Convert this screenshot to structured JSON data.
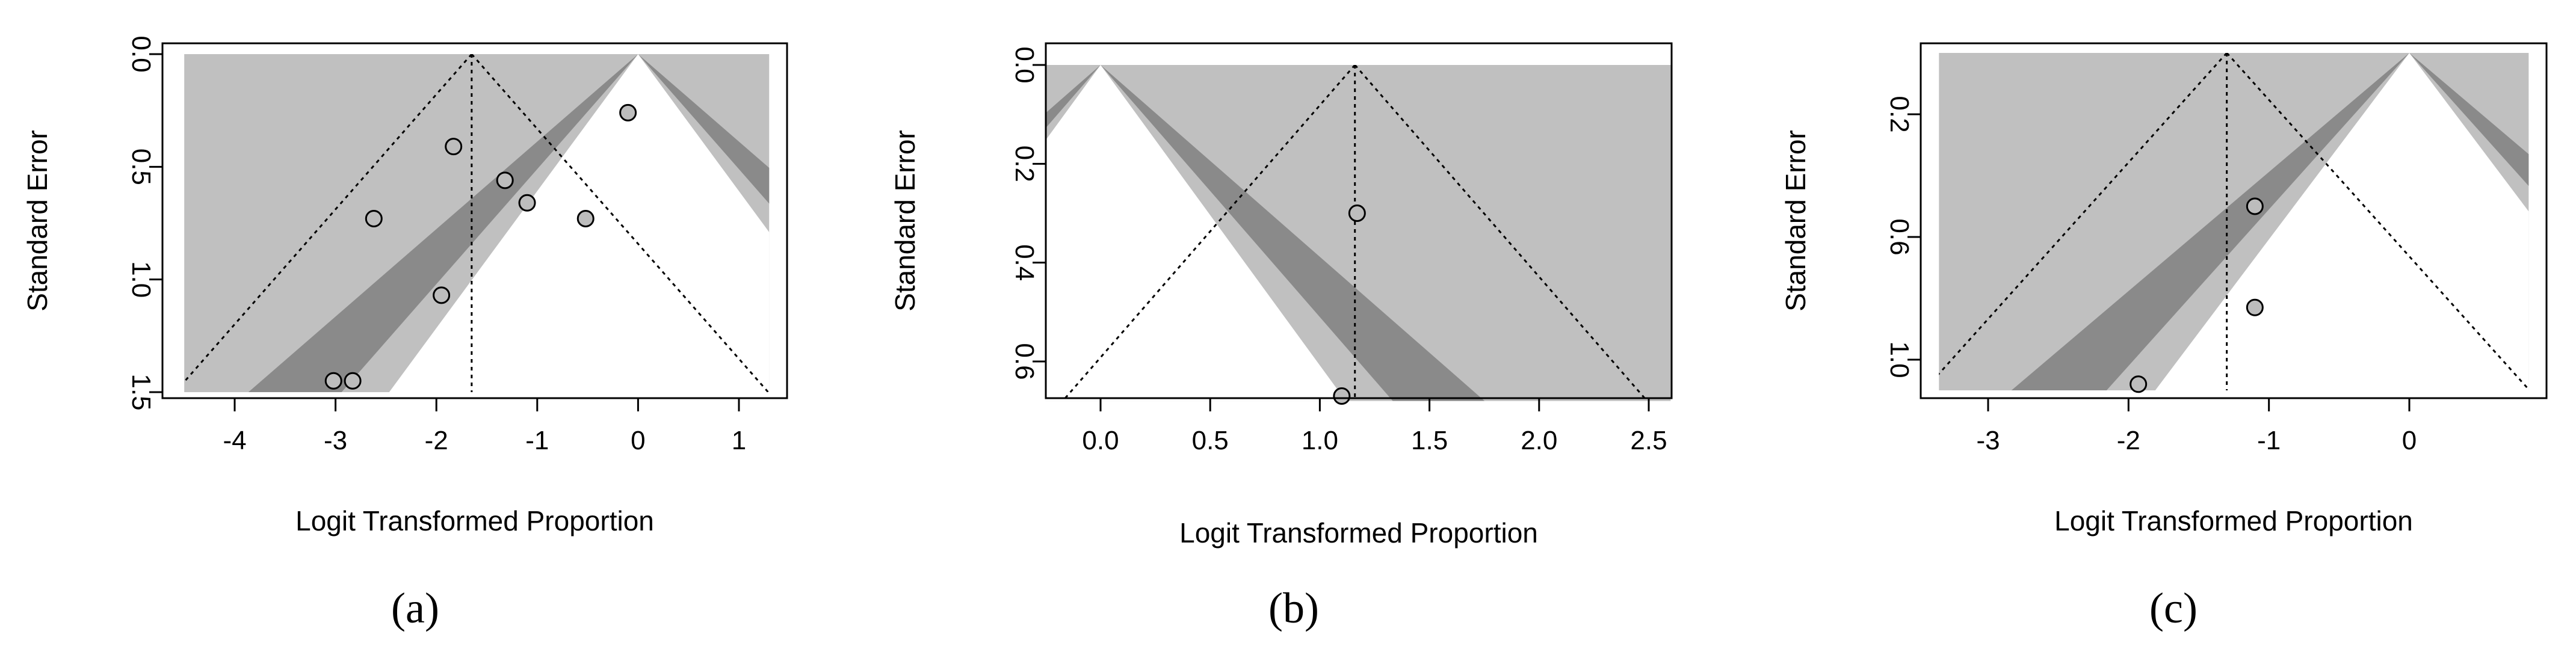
{
  "figure": {
    "captions": [
      "(a)",
      "(b)",
      "(c)"
    ]
  },
  "colors": {
    "light_region": "#c0c0c0",
    "dark_region": "#8a8a8a",
    "point_fill": "#bdbdbd",
    "line": "#000000",
    "background": "#ffffff"
  },
  "chart_data": [
    {
      "type": "scatter",
      "subtype": "contour-enhanced funnel plot",
      "caption": "(a)",
      "xlabel": "Logit Transformed Proportion",
      "ylabel": "Standard Error",
      "xlim": [
        -4.5,
        1.3
      ],
      "ylim_reversed": [
        1.5,
        0
      ],
      "x_ticks": [
        -4,
        -3,
        -2,
        -1,
        0,
        1
      ],
      "x_tick_labels": [
        "-4",
        "-3",
        "-2",
        "-1",
        "0",
        "1"
      ],
      "y_ticks": [
        0.0,
        0.5,
        1.0,
        1.5
      ],
      "y_tick_labels": [
        "0.0",
        "0.5",
        "1.0",
        "1.5"
      ],
      "y_axis_reversed": true,
      "pooled_estimate": -1.65,
      "contour_center": 0,
      "points": [
        {
          "x": -0.1,
          "y": 0.26
        },
        {
          "x": -1.83,
          "y": 0.41
        },
        {
          "x": -1.32,
          "y": 0.56
        },
        {
          "x": -1.1,
          "y": 0.66
        },
        {
          "x": -2.62,
          "y": 0.73
        },
        {
          "x": -0.52,
          "y": 0.73
        },
        {
          "x": -1.95,
          "y": 1.07
        },
        {
          "x": -3.02,
          "y": 1.45
        },
        {
          "x": -2.83,
          "y": 1.45
        }
      ]
    },
    {
      "type": "scatter",
      "subtype": "contour-enhanced funnel plot",
      "caption": "(b)",
      "xlabel": "Logit Transformed Proportion",
      "ylabel": "Standard Error",
      "xlim": [
        -0.25,
        2.6
      ],
      "ylim_reversed": [
        0.68,
        0
      ],
      "x_ticks": [
        0.0,
        0.5,
        1.0,
        1.5,
        2.0,
        2.5
      ],
      "x_tick_labels": [
        "0.0",
        "0.5",
        "1.0",
        "1.5",
        "2.0",
        "2.5"
      ],
      "y_ticks": [
        0.0,
        0.2,
        0.4,
        0.6
      ],
      "y_tick_labels": [
        "0.0",
        "0.2",
        "0.4",
        "0.6"
      ],
      "y_axis_reversed": true,
      "pooled_estimate": 1.16,
      "contour_center": 0,
      "points": [
        {
          "x": 1.17,
          "y": 0.3
        },
        {
          "x": 1.1,
          "y": 0.67
        }
      ]
    },
    {
      "type": "scatter",
      "subtype": "contour-enhanced funnel plot",
      "caption": "(c)",
      "xlabel": "Logit Transformed Proportion",
      "ylabel": "Standard Error",
      "xlim": [
        -3.35,
        0.85
      ],
      "ylim_reversed": [
        1.1,
        0
      ],
      "x_ticks": [
        -3,
        -2,
        -1,
        0
      ],
      "x_tick_labels": [
        "-3",
        "-2",
        "-1",
        "0"
      ],
      "y_ticks": [
        0.2,
        0.6,
        1.0
      ],
      "y_tick_labels": [
        "0.2",
        "0.6",
        "1.0"
      ],
      "y_axis_reversed": true,
      "pooled_estimate": -1.3,
      "contour_center": 0,
      "points": [
        {
          "x": -1.1,
          "y": 0.5
        },
        {
          "x": -1.1,
          "y": 0.83
        },
        {
          "x": -1.93,
          "y": 1.08
        }
      ]
    }
  ]
}
